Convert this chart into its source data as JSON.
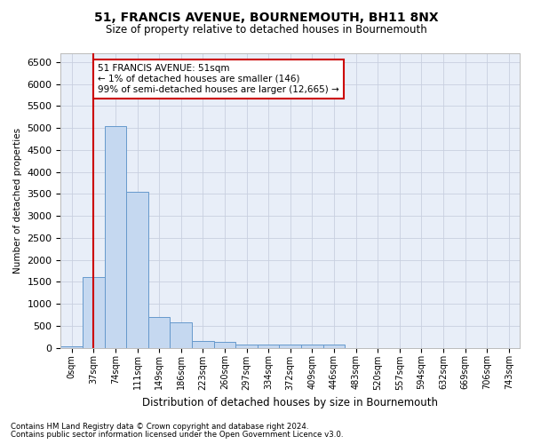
{
  "title": "51, FRANCIS AVENUE, BOURNEMOUTH, BH11 8NX",
  "subtitle": "Size of property relative to detached houses in Bournemouth",
  "xlabel": "Distribution of detached houses by size in Bournemouth",
  "ylabel": "Number of detached properties",
  "bar_color": "#c5d8f0",
  "bar_edge_color": "#6699cc",
  "background_color": "#e8eef8",
  "grid_color": "#c8cfe0",
  "vline_color": "#cc0000",
  "vline_x": 1,
  "annotation_text": "51 FRANCIS AVENUE: 51sqm\n← 1% of detached houses are smaller (146)\n99% of semi-detached houses are larger (12,665) →",
  "annotation_box_color": "#ffffff",
  "annotation_box_edge": "#cc0000",
  "footnote1": "Contains HM Land Registry data © Crown copyright and database right 2024.",
  "footnote2": "Contains public sector information licensed under the Open Government Licence v3.0.",
  "xlim_left": -0.5,
  "xlim_right": 20.5,
  "ylim": [
    0,
    6700
  ],
  "ytick_step": 500,
  "categories": [
    "0sqm",
    "37sqm",
    "74sqm",
    "111sqm",
    "149sqm",
    "186sqm",
    "223sqm",
    "260sqm",
    "297sqm",
    "334sqm",
    "372sqm",
    "409sqm",
    "446sqm",
    "483sqm",
    "520sqm",
    "557sqm",
    "594sqm",
    "632sqm",
    "669sqm",
    "706sqm",
    "743sqm"
  ],
  "values": [
    30,
    1600,
    5050,
    3550,
    700,
    580,
    150,
    140,
    80,
    70,
    80,
    75,
    65,
    0,
    0,
    0,
    0,
    0,
    0,
    0,
    0
  ]
}
